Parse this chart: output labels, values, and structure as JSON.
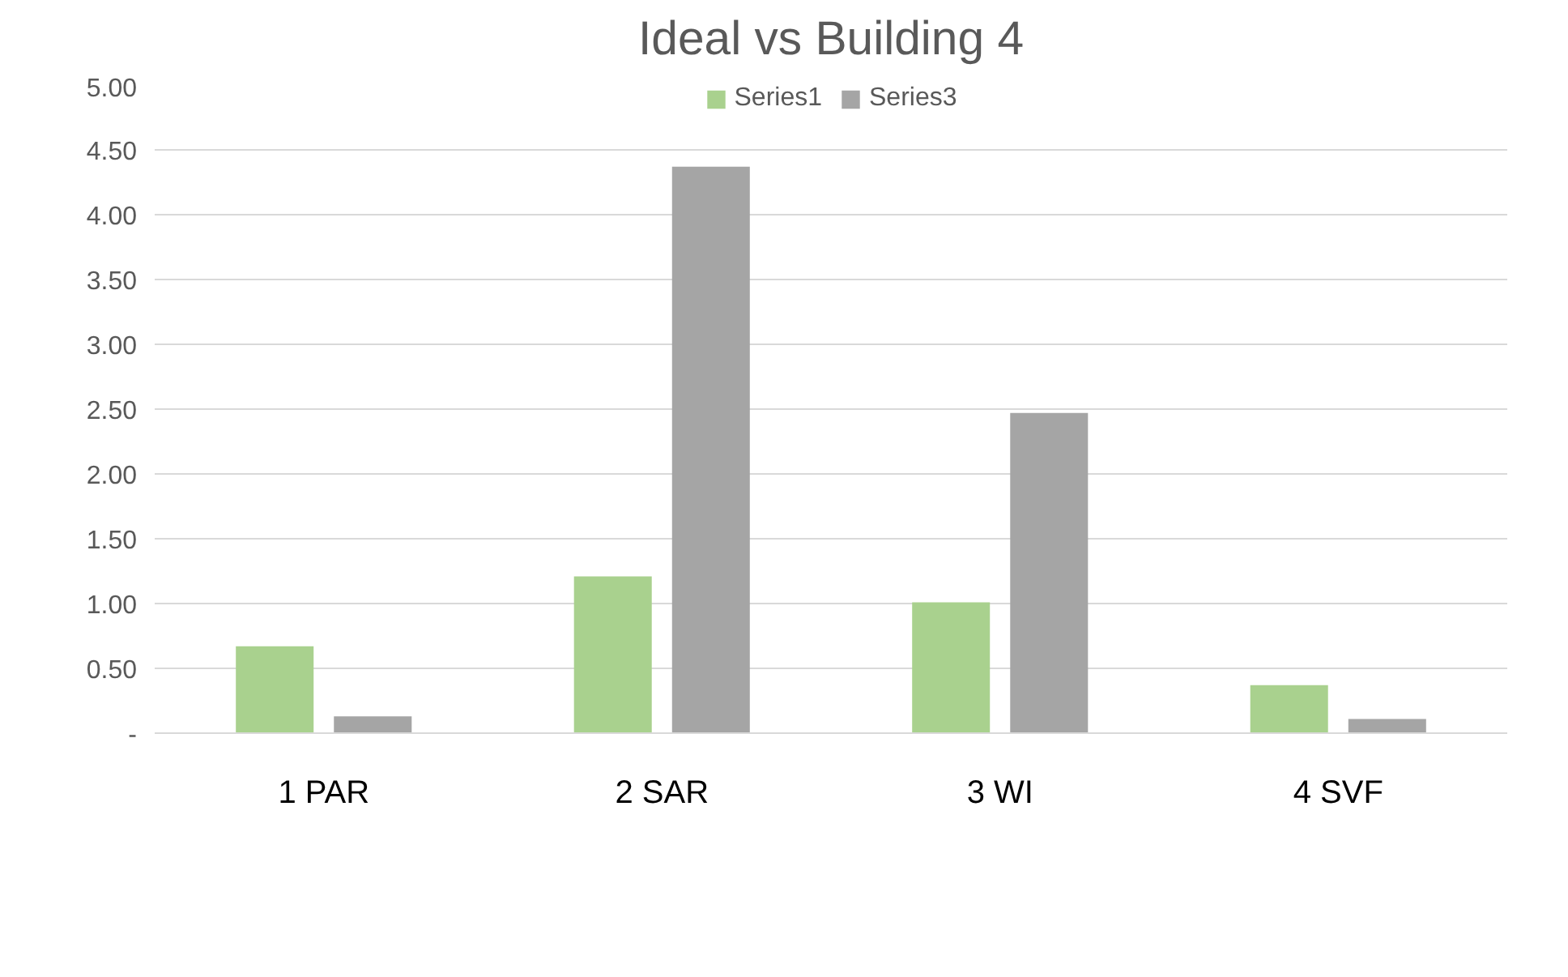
{
  "chart_data": {
    "type": "bar",
    "title": "Ideal vs Building 4",
    "categories": [
      "1 PAR",
      "2 SAR",
      "3 WI",
      "4 SVF"
    ],
    "series": [
      {
        "name": "Series1",
        "color": "#a9d18e",
        "values": [
          0.67,
          1.21,
          1.01,
          0.37
        ]
      },
      {
        "name": "Series3",
        "color": "#a5a5a5",
        "values": [
          0.13,
          4.37,
          2.47,
          0.11
        ]
      }
    ],
    "ylim": [
      0,
      5
    ],
    "yticks": [
      {
        "value": 0,
        "label": "-"
      },
      {
        "value": 0.5,
        "label": "0.50"
      },
      {
        "value": 1,
        "label": "1.00"
      },
      {
        "value": 1.5,
        "label": "1.50"
      },
      {
        "value": 2,
        "label": "2.00"
      },
      {
        "value": 2.5,
        "label": "2.50"
      },
      {
        "value": 3,
        "label": "3.00"
      },
      {
        "value": 3.5,
        "label": "3.50"
      },
      {
        "value": 4,
        "label": "4.00"
      },
      {
        "value": 4.5,
        "label": "4.50"
      },
      {
        "value": 5,
        "label": "5.00"
      }
    ],
    "grid": "y",
    "legend": "top"
  }
}
